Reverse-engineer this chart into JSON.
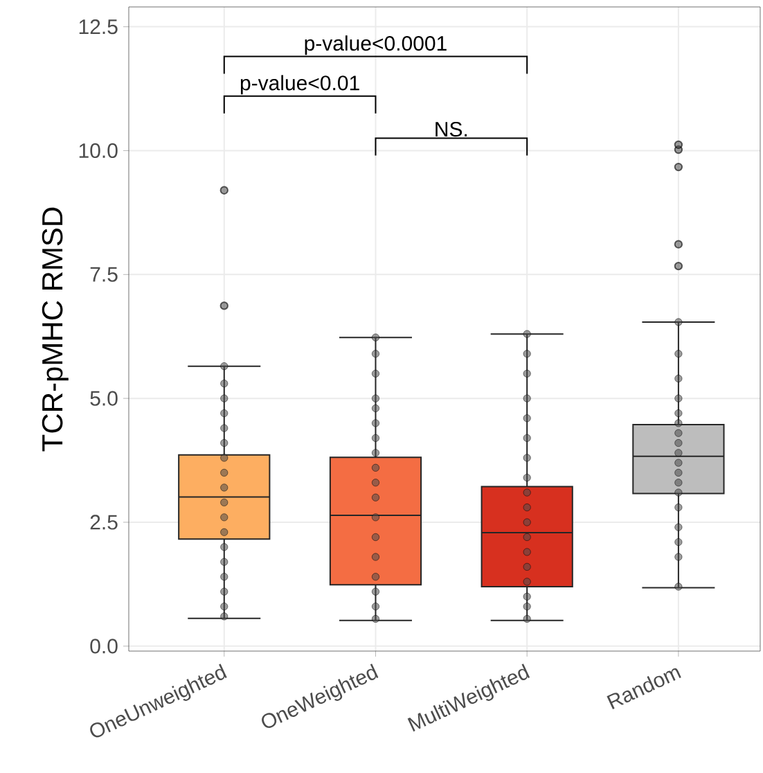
{
  "chart_data": {
    "type": "box",
    "ylabel": "TCR-pMHC RMSD",
    "categories": [
      "OneUnweighted",
      "OneWeighted",
      "MultiWeighted",
      "Random"
    ],
    "colors": [
      "#fdae61",
      "#f46d43",
      "#d7301f",
      "#bdbdbd"
    ],
    "boxes": [
      {
        "low": 0.56,
        "q1": 2.16,
        "median": 3.01,
        "q3": 3.86,
        "high": 5.65,
        "outliers": [
          6.87,
          9.2
        ]
      },
      {
        "low": 0.52,
        "q1": 1.24,
        "median": 2.64,
        "q3": 3.81,
        "high": 6.23
      },
      {
        "low": 0.52,
        "q1": 1.2,
        "median": 2.29,
        "q3": 3.22,
        "high": 6.3
      },
      {
        "low": 1.18,
        "q1": 3.08,
        "median": 3.83,
        "q3": 4.47,
        "high": 6.54,
        "outliers": [
          7.67,
          8.11,
          9.67,
          10.02,
          10.12
        ]
      }
    ],
    "series": [
      {
        "type": "scatter",
        "color": "#4d4d4d",
        "x": [
          "OneUnweighted",
          "OneUnweighted",
          "OneUnweighted",
          "OneUnweighted",
          "OneUnweighted",
          "OneUnweighted",
          "OneUnweighted",
          "OneUnweighted",
          "OneUnweighted",
          "OneUnweighted",
          "OneUnweighted",
          "OneUnweighted",
          "OneUnweighted",
          "OneUnweighted",
          "OneUnweighted",
          "OneUnweighted",
          "OneUnweighted",
          "OneUnweighted",
          "OneWeighted",
          "OneWeighted",
          "OneWeighted",
          "OneWeighted",
          "OneWeighted",
          "OneWeighted",
          "OneWeighted",
          "OneWeighted",
          "OneWeighted",
          "OneWeighted",
          "OneWeighted",
          "OneWeighted",
          "OneWeighted",
          "OneWeighted",
          "OneWeighted",
          "OneWeighted",
          "OneWeighted",
          "OneWeighted",
          "MultiWeighted",
          "MultiWeighted",
          "MultiWeighted",
          "MultiWeighted",
          "MultiWeighted",
          "MultiWeighted",
          "MultiWeighted",
          "MultiWeighted",
          "MultiWeighted",
          "MultiWeighted",
          "MultiWeighted",
          "MultiWeighted",
          "MultiWeighted",
          "MultiWeighted",
          "MultiWeighted",
          "MultiWeighted",
          "MultiWeighted",
          "MultiWeighted",
          "Random",
          "Random",
          "Random",
          "Random",
          "Random",
          "Random",
          "Random",
          "Random",
          "Random",
          "Random",
          "Random",
          "Random",
          "Random",
          "Random",
          "Random",
          "Random",
          "Random",
          "Random"
        ],
        "values": [
          0.6,
          0.8,
          1.1,
          1.4,
          1.7,
          2.0,
          2.3,
          2.6,
          2.9,
          3.2,
          3.5,
          3.8,
          4.1,
          4.4,
          4.7,
          5.0,
          5.3,
          5.65,
          0.55,
          0.8,
          1.1,
          1.4,
          1.8,
          2.2,
          2.6,
          3.0,
          3.3,
          3.6,
          3.9,
          4.2,
          4.5,
          4.8,
          5.0,
          5.5,
          5.9,
          6.23,
          0.55,
          0.8,
          1.0,
          1.3,
          1.6,
          1.9,
          2.2,
          2.5,
          2.8,
          3.1,
          3.4,
          3.8,
          4.2,
          4.6,
          5.0,
          5.5,
          5.9,
          6.3,
          1.2,
          1.8,
          2.1,
          2.4,
          2.8,
          3.1,
          3.3,
          3.5,
          3.7,
          3.9,
          4.1,
          4.3,
          4.5,
          4.7,
          5.0,
          5.4,
          5.9,
          6.54
        ]
      }
    ],
    "annotations": [
      "p-value<0.0001",
      "p-value<0.01",
      "NS."
    ],
    "ylim": [
      -0.1,
      12.9
    ],
    "yticks": [
      {
        "value": 0,
        "label": "0.0"
      },
      2.5,
      {
        "value": 5,
        "label": "5.0"
      },
      7.5,
      {
        "value": 10,
        "label": "10.0"
      },
      12.5
    ],
    "grid": true
  }
}
